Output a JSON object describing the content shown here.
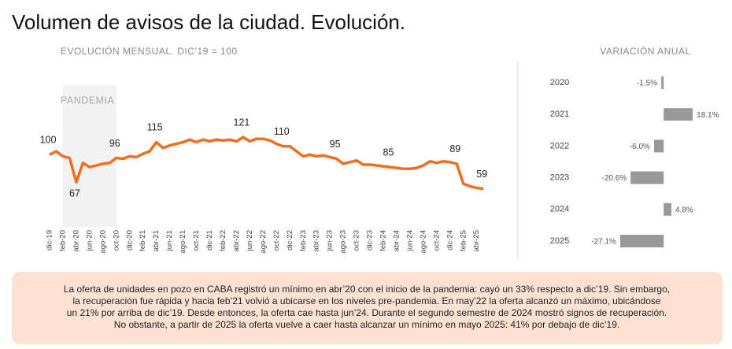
{
  "title": "Volumen de avisos de la ciudad. Evolución.",
  "chart_data": [
    {
      "type": "line",
      "title": "EVOLUCIÓN MENSUAL. DIC’19 = 100",
      "color": "#f06e1e",
      "categories": [
        "dic-19",
        null,
        "feb-20",
        null,
        "abr-20",
        null,
        "jun-20",
        null,
        "ago-20",
        null,
        "oct-20",
        null,
        "dic-20",
        null,
        "feb-21",
        null,
        "abr-21",
        null,
        "jun-21",
        null,
        "ago-21",
        null,
        "oct-21",
        null,
        "dic-21",
        null,
        "feb-22",
        null,
        "abr-22",
        null,
        "jun-22",
        null,
        "ago-22",
        null,
        "oct-22",
        null,
        "dic-22",
        null,
        "feb-23",
        null,
        "abr-23",
        null,
        "jun-23",
        null,
        "ago-23",
        null,
        "oct-23",
        null,
        "dic-23",
        null,
        "feb-24",
        null,
        "abr-24",
        null,
        "jun-24",
        null,
        "ago-24",
        null,
        "oct-24",
        null,
        "dic-24",
        null,
        "feb-25",
        null,
        "abr-25",
        null
      ],
      "values": [
        100,
        104,
        98,
        96,
        67,
        90,
        85,
        87,
        89,
        90,
        96,
        95,
        98,
        97,
        101,
        104,
        115,
        108,
        111,
        113,
        115,
        118,
        115,
        118,
        116,
        118,
        117,
        118,
        116,
        121,
        116,
        119,
        119,
        117,
        113,
        110,
        110,
        104,
        98,
        100,
        98,
        99,
        97,
        95,
        89,
        91,
        93,
        88,
        88,
        87,
        86,
        85,
        84,
        83,
        83,
        84,
        87,
        92,
        90,
        92,
        91,
        89,
        65,
        62,
        60,
        59
      ],
      "value_labels": [
        100,
        null,
        null,
        null,
        67,
        null,
        null,
        null,
        null,
        null,
        96,
        null,
        null,
        null,
        null,
        null,
        115,
        null,
        null,
        null,
        null,
        null,
        null,
        null,
        null,
        null,
        null,
        null,
        null,
        121,
        null,
        null,
        null,
        null,
        null,
        110,
        null,
        null,
        null,
        null,
        null,
        null,
        null,
        95,
        null,
        null,
        null,
        null,
        null,
        null,
        null,
        85,
        null,
        null,
        null,
        null,
        null,
        null,
        null,
        null,
        null,
        89,
        null,
        null,
        null,
        59
      ],
      "ylim": [
        0,
        140
      ],
      "shade": {
        "label": "PANDEMIA",
        "start": "feb-20",
        "end": "oct-20"
      }
    },
    {
      "type": "hbar",
      "title": "VARIACIÓN ANUAL",
      "color": "#999999",
      "categories": [
        "2020",
        "2021",
        "2022",
        "2023",
        "2024",
        "2025"
      ],
      "values": [
        -1.5,
        18.1,
        -6.0,
        -20.6,
        4.8,
        -27.1
      ],
      "value_labels": [
        "-1.5%",
        "18.1%",
        "-6.0%",
        "-20.6%",
        "4.8%",
        "-27.1%"
      ],
      "xlim": [
        -30,
        20
      ]
    }
  ],
  "note": [
    "La oferta de unidades en pozo en CABA registró un mínimo en abr’20 con el inicio de la pandemia: cayó un 33% respecto a dic’19. Sin embargo,",
    "la recuperación fue rápida y hacia feb’21 volvió a ubicarse en los niveles pre-pandemia. En may’22 la oferta alcanzó un máximo, ubicándose",
    "un 21% por arriba de dic’19. Desde entonces, la oferta cae hasta jun’24. Durante el segundo semestre de 2024 mostró signos de recuperación.",
    "No obstante, a partir de 2025 la oferta vuelve a caer hasta alcanzar un mínimo en mayo 2025: 41% por debajo de dic’19."
  ]
}
